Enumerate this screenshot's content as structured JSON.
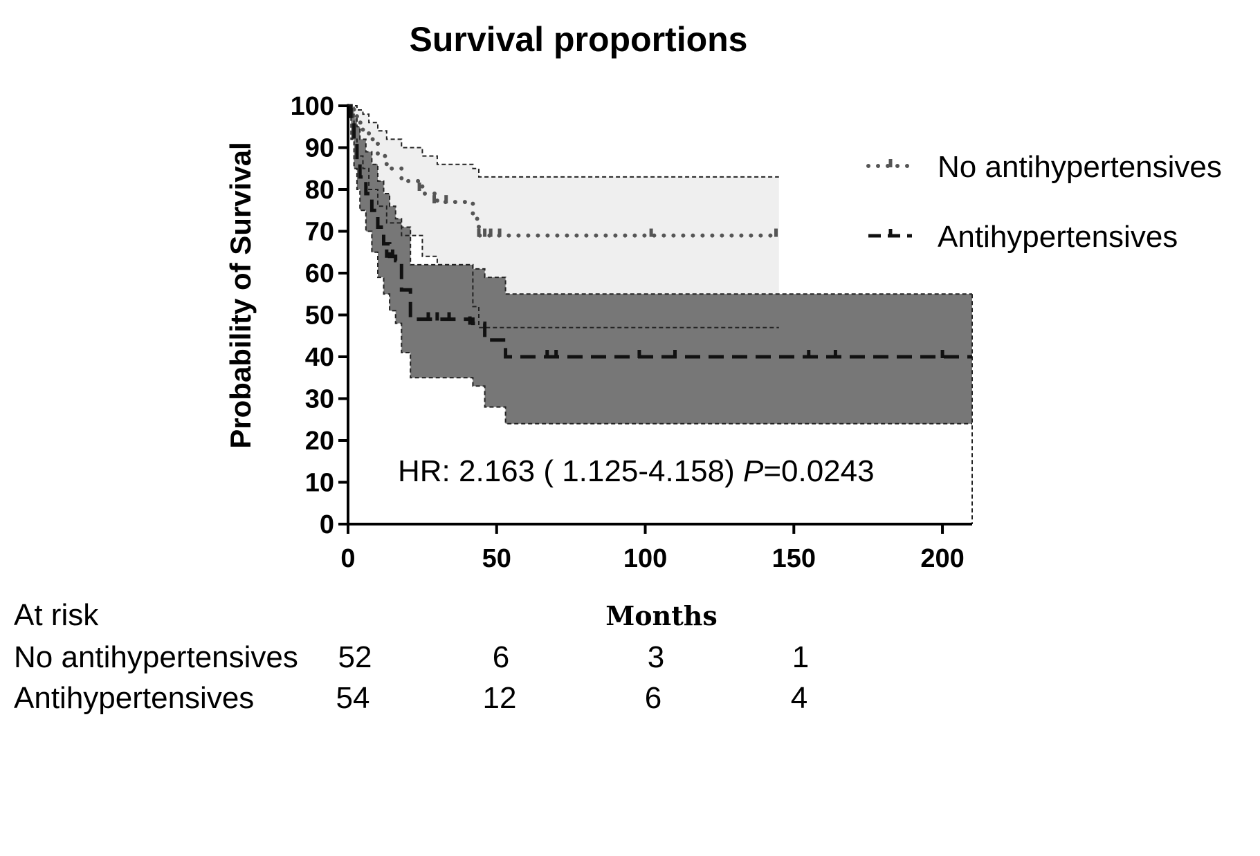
{
  "chart_data": {
    "type": "line",
    "title": "Survival proportions",
    "xlabel": "Months",
    "ylabel": "Probability of Survival",
    "xlim": [
      0,
      210
    ],
    "ylim": [
      0,
      100
    ],
    "x_ticks": [
      "0",
      "50",
      "100",
      "150",
      "200"
    ],
    "y_ticks": [
      "0",
      "10",
      "20",
      "30",
      "40",
      "50",
      "60",
      "70",
      "80",
      "90",
      "100"
    ],
    "x_tick_values": [
      0,
      50,
      100,
      150,
      200
    ],
    "y_tick_values": [
      0,
      10,
      20,
      30,
      40,
      50,
      60,
      70,
      80,
      90,
      100
    ],
    "legend_placement": "top-right",
    "grid": false,
    "annotation": {
      "prefix": "HR: 2.163 ( 1.125-4.158) ",
      "p_symbol": "P",
      "p_value": "=0.0243"
    },
    "series": [
      {
        "name": "No antihypertensives",
        "style": "dotted",
        "color": "#555555",
        "band_color": "#efefef",
        "x": [
          0,
          2,
          3,
          5,
          7,
          10,
          13,
          18,
          25,
          30,
          42,
          44,
          145
        ],
        "y": [
          100,
          98,
          96,
          94,
          92,
          88,
          85,
          82,
          79,
          77,
          73,
          69,
          69
        ],
        "ci_lower": [
          100,
          92,
          88,
          85,
          80,
          76,
          72,
          69,
          64,
          62,
          52,
          47,
          47
        ],
        "ci_upper": [
          100,
          100,
          99,
          98,
          96,
          94,
          92,
          90,
          88,
          86,
          85,
          83,
          83
        ],
        "censor_x": [
          24,
          29,
          33,
          44,
          46,
          48,
          51,
          102,
          144
        ],
        "censor_y": [
          80,
          77,
          77,
          69,
          69,
          69,
          69,
          69,
          69
        ]
      },
      {
        "name": "Antihypertensives",
        "style": "dashed",
        "color": "#111111",
        "band_color": "#707070",
        "x": [
          0,
          1,
          2,
          3,
          4,
          6,
          8,
          10,
          12,
          14,
          16,
          18,
          21,
          42,
          46,
          53,
          210
        ],
        "y": [
          100,
          96,
          91,
          87,
          83,
          79,
          75,
          71,
          67,
          64,
          63,
          56,
          49,
          48,
          44,
          40,
          40
        ],
        "ci_lower": [
          100,
          92,
          85,
          80,
          75,
          70,
          65,
          59,
          55,
          51,
          48,
          41,
          35,
          33,
          28,
          24,
          24
        ],
        "ci_upper": [
          100,
          99,
          97,
          95,
          92,
          89,
          86,
          82,
          79,
          76,
          73,
          71,
          62,
          61,
          59,
          55,
          55
        ],
        "censor_x": [
          13,
          15,
          27,
          30,
          34,
          41,
          67,
          70,
          98,
          110,
          155,
          164,
          200
        ],
        "censor_y": [
          64,
          64,
          49,
          49,
          49,
          48,
          40,
          40,
          40,
          40,
          40,
          40,
          40
        ]
      }
    ],
    "at_risk": {
      "label": "At risk",
      "rows": [
        {
          "name": "No antihypertensives",
          "values": [
            "52",
            "6",
            "3",
            "1"
          ]
        },
        {
          "name": "Antihypertensives",
          "values": [
            "54",
            "12",
            "6",
            "4"
          ]
        }
      ]
    }
  }
}
